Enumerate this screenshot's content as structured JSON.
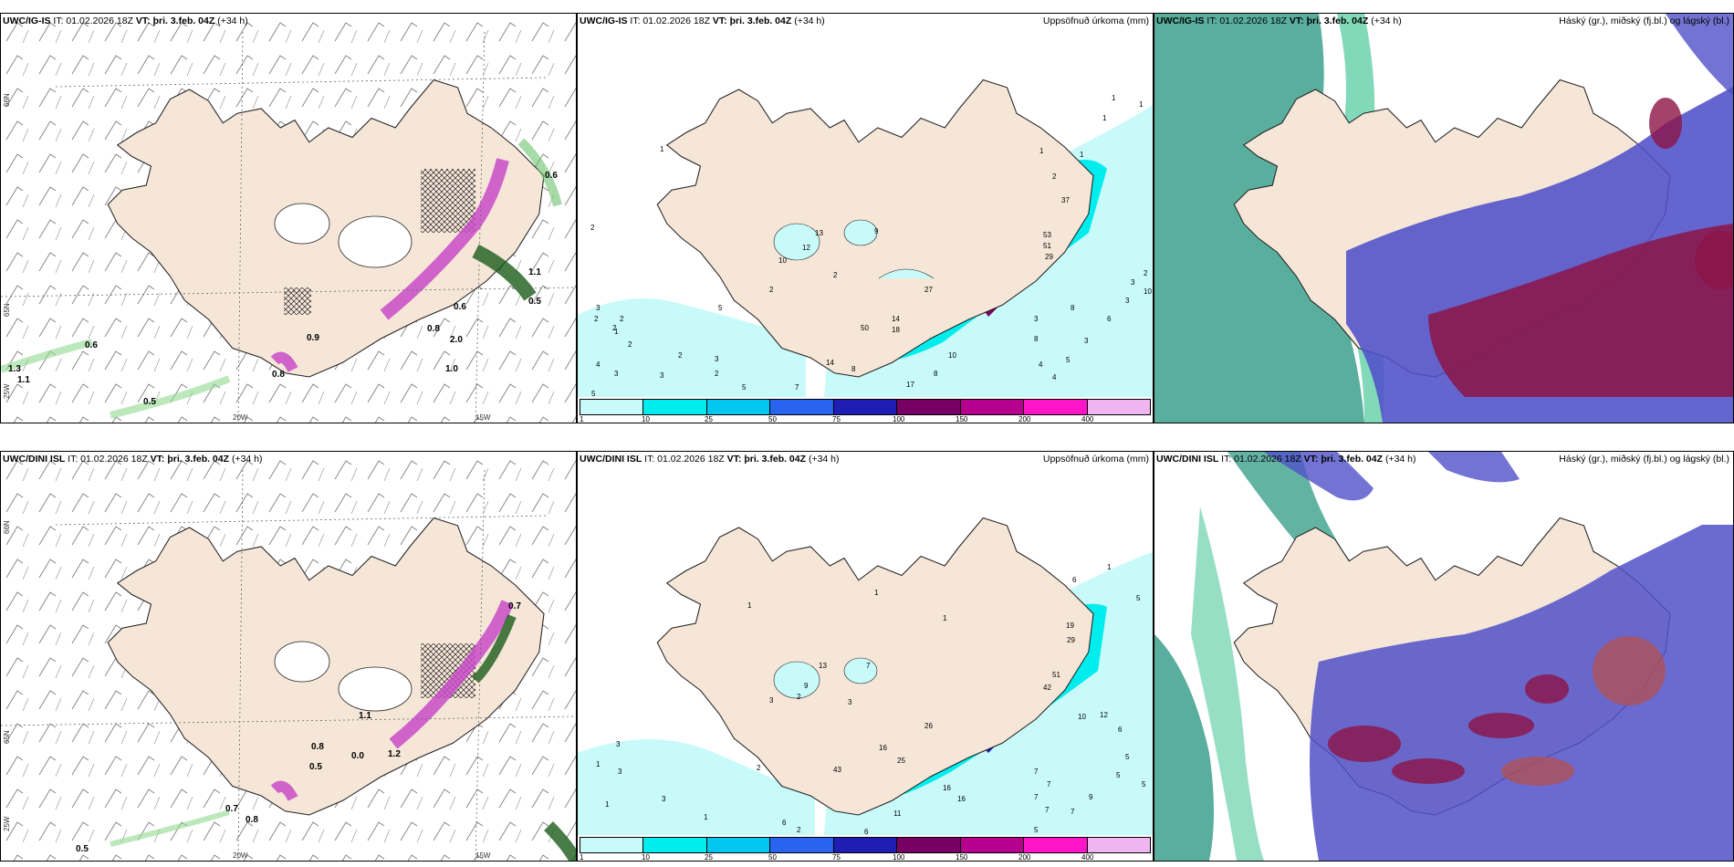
{
  "colors": {
    "land": "#f5e6d8",
    "coast": "#222222",
    "precip_scale": [
      "#c8fafa",
      "#00eded",
      "#00c8f0",
      "#2864f0",
      "#1e1eb4",
      "#780064",
      "#b4008c",
      "#ff14c8",
      "#f0b4f0"
    ],
    "cloud_high": "#3ca08c",
    "cloud_mid": "#5050c8",
    "cloud_low": "#8c1446",
    "snow_hatch": "#000000",
    "precip_magenta": "#c84bc8",
    "precip_green": "#1a5c1a"
  },
  "panels": {
    "igis_wind": {
      "model": "UWC/IG-IS",
      "it_prefix": "IT: 01.02.2026 18Z",
      "vt_label": "VT:",
      "vt_value": "þri. 3.feb. 04Z",
      "lead": "(+34 h)",
      "labels": [
        "0.6",
        "1.1",
        "0.6",
        "0.8",
        "2.0",
        "1.0",
        "0.9",
        "0.8",
        "0.6",
        "0.5",
        "1.3",
        "1.1",
        "0.5"
      ],
      "axis": {
        "lat65": "65N",
        "lat66": "66N",
        "lon25": "25W",
        "lon20": "20W",
        "lon15": "15W"
      }
    },
    "igis_precip": {
      "model": "UWC/IG-IS",
      "it_prefix": "IT: 01.02.2026 18Z",
      "vt_label": "VT:",
      "vt_value": "þri. 3.feb. 04Z",
      "lead": "(+34 h)",
      "title_right": "Uppsöfnuð úrkoma (mm)",
      "values": [
        "1",
        "3",
        "2",
        "1",
        "4",
        "8",
        "2",
        "2",
        "2",
        "2",
        "3",
        "3",
        "3",
        "3",
        "5",
        "4",
        "6",
        "8",
        "3",
        "5",
        "4",
        "9",
        "8",
        "14",
        "18",
        "50",
        "14",
        "10",
        "27",
        "17",
        "13",
        "12",
        "10",
        "8",
        "2",
        "2",
        "2",
        "2",
        "3",
        "2",
        "3",
        "5",
        "5",
        "7",
        "29",
        "53",
        "51",
        "37",
        "10",
        "1",
        "1",
        "1",
        "2",
        "1",
        "1"
      ],
      "scale_ticks": [
        "1",
        "10",
        "25",
        "50",
        "75",
        "100",
        "150",
        "200",
        "400"
      ]
    },
    "igis_cloud": {
      "model": "UWC/IG-IS",
      "it_prefix": "IT: 01.02.2026 18Z",
      "vt_label": "VT:",
      "vt_value": "þri. 3.feb. 04Z",
      "lead": "(+34 h)",
      "title_right": "Háský (gr.), miðský (fj.bl.) og lágský (bl.)"
    },
    "dini_wind": {
      "model": "UWC/DINI ISL",
      "it_prefix": "IT: 01.02.2026 18Z",
      "vt_label": "VT:",
      "vt_value": "þri. 3.feb. 04Z",
      "lead": "(+34 h)",
      "labels": [
        "0.7",
        "1.1",
        "0.8",
        "0.5",
        "0.7",
        "0.8",
        "0.5",
        "1.2",
        "0.0"
      ],
      "axis": {
        "lat65": "65N",
        "lat66": "66N",
        "lon25": "25W",
        "lon20": "20W",
        "lon15": "15W"
      }
    },
    "dini_precip": {
      "model": "UWC/DINI ISL",
      "it_prefix": "IT: 01.02.2026 18Z",
      "vt_label": "VT:",
      "vt_value": "þri. 3.feb. 04Z",
      "lead": "(+34 h)",
      "title_right": "Uppsöfnuð úrkoma (mm)",
      "values": [
        "1",
        "1",
        "13",
        "7",
        "9",
        "3",
        "3",
        "2",
        "1",
        "1",
        "2",
        "3",
        "43",
        "16",
        "25",
        "26",
        "16",
        "16",
        "11",
        "6",
        "6",
        "7",
        "7",
        "7",
        "7",
        "19",
        "29",
        "51",
        "42",
        "10",
        "12",
        "6",
        "5",
        "5",
        "9",
        "5",
        "7",
        "5",
        "3",
        "1",
        "1",
        "1",
        "3",
        "2",
        "6",
        "5"
      ],
      "scale_ticks": [
        "1",
        "10",
        "25",
        "50",
        "75",
        "100",
        "150",
        "200",
        "400"
      ]
    },
    "dini_cloud": {
      "model": "UWC/DINI ISL",
      "it_prefix": "IT: 01.02.2026 18Z",
      "vt_label": "VT:",
      "vt_value": "þri. 3.feb. 04Z",
      "lead": "(+34 h)",
      "title_right": "Háský (gr.), miðský (fj.bl.) og lágský (bl.)"
    }
  }
}
